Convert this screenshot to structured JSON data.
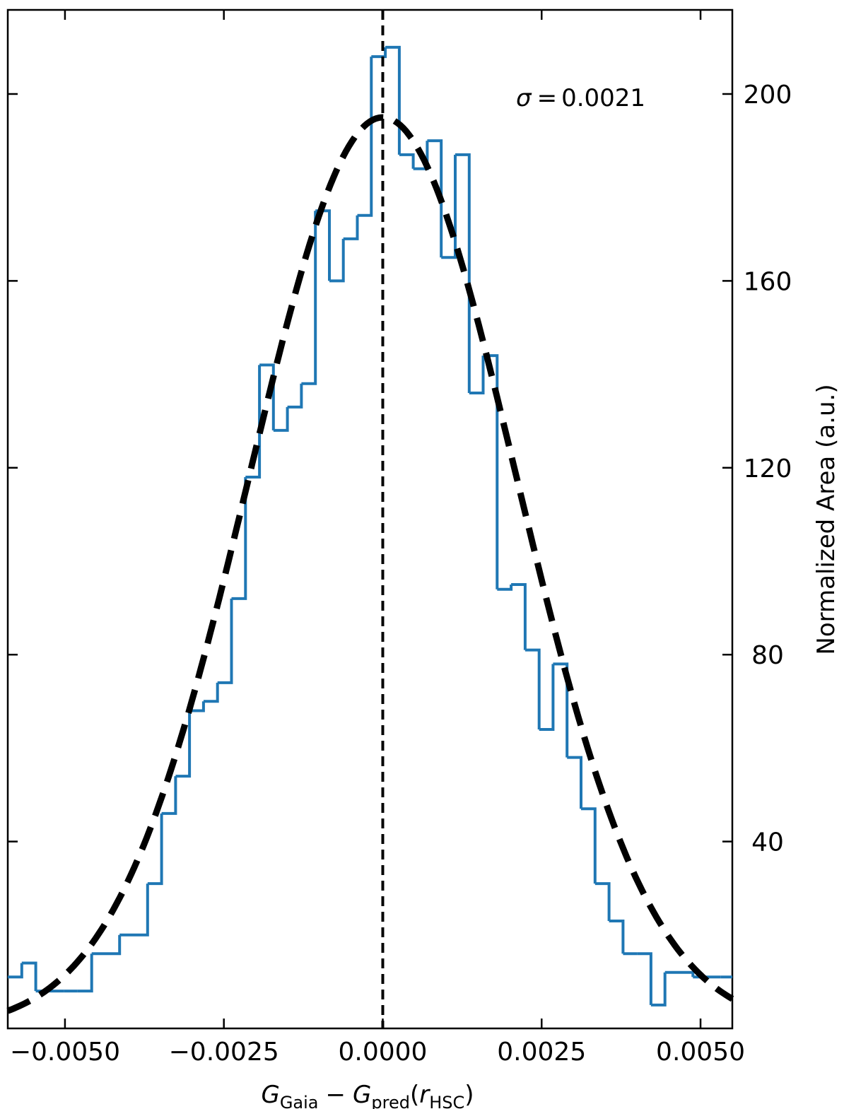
{
  "chart_data": {
    "type": "histogram",
    "title": "",
    "xlabel": {
      "main": "G",
      "main_sub": "Gaia",
      "minus": "−",
      "second": "G",
      "second_sub": "pred",
      "paren_open": "(",
      "arg": "r",
      "arg_sub": "HSC",
      "paren_close": ")"
    },
    "ylabel": "Normalized Area (a.u.)",
    "y_axis_side": "right",
    "xlim": [
      -0.0059,
      0.0055
    ],
    "ylim": [
      0,
      218
    ],
    "x_ticks": [
      -0.005,
      -0.0025,
      0.0,
      0.0025,
      0.005
    ],
    "x_tick_labels": [
      "−0.0050",
      "−0.0025",
      "0.0000",
      "0.0025",
      "0.0050"
    ],
    "y_ticks": [
      40,
      80,
      120,
      160,
      200
    ],
    "y_tick_labels": [
      "40",
      "80",
      "120",
      "160",
      "200"
    ],
    "histogram": {
      "color": "#1f77b4",
      "bin_edges": [
        -0.0059,
        -0.00568,
        -0.00546,
        -0.00524,
        -0.00502,
        -0.0048,
        -0.00458,
        -0.00436,
        -0.00414,
        -0.00392,
        -0.0037,
        -0.00348,
        -0.00326,
        -0.00304,
        -0.00282,
        -0.0026,
        -0.00238,
        -0.00216,
        -0.00194,
        -0.00172,
        -0.0015,
        -0.00128,
        -0.00106,
        -0.00084,
        -0.00062,
        -0.0004,
        -0.00018,
        4e-05,
        0.00026,
        0.00048,
        0.0007,
        0.00092,
        0.00114,
        0.00136,
        0.00158,
        0.0018,
        0.00202,
        0.00224,
        0.00246,
        0.00268,
        0.0029,
        0.00312,
        0.00334,
        0.00356,
        0.00378,
        0.004,
        0.00422,
        0.00444,
        0.00466,
        0.00488,
        0.0051,
        0.00532,
        0.0055
      ],
      "values": [
        11,
        14,
        8,
        8,
        8,
        8,
        16,
        16,
        20,
        20,
        31,
        46,
        54,
        68,
        70,
        74,
        92,
        118,
        142,
        128,
        133,
        138,
        175,
        160,
        169,
        174,
        208,
        210,
        187,
        184,
        190,
        165,
        187,
        136,
        144,
        94,
        95,
        81,
        64,
        78,
        58,
        47,
        31,
        23,
        16,
        16,
        5,
        12,
        12,
        11,
        11,
        11
      ]
    },
    "fit": {
      "style": "dashed",
      "color": "#000000",
      "mean": 0.0,
      "sigma": 0.0021,
      "amplitude": 195
    },
    "vline": {
      "x": 0.0,
      "style": "dashed",
      "color": "#000000"
    },
    "annotation": {
      "sigma_symbol": "σ",
      "equals": "=",
      "sigma_value": "0.0021"
    },
    "grid": false
  }
}
